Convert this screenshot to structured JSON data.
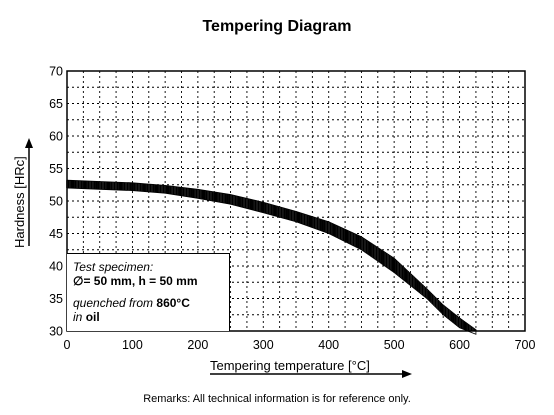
{
  "title": "Tempering Diagram",
  "remarks": "Remarks: All technical information is for reference only.",
  "specimen": {
    "heading": "Test specimen:",
    "diameter_symbol": "∅",
    "dimensions": "= 50 mm, h = 50 mm",
    "quench_prefix": "quenched from ",
    "quench_temp": "860°C",
    "medium_prefix": "in ",
    "medium": "oil"
  },
  "chart_data": {
    "type": "area",
    "title": "Tempering Diagram",
    "xlabel": "Tempering temperature [°C]",
    "ylabel": "Hardness [HRc]",
    "xlim": [
      0,
      700
    ],
    "ylim": [
      30,
      70
    ],
    "x_ticks": [
      0,
      100,
      200,
      300,
      400,
      500,
      600,
      700
    ],
    "y_ticks": [
      30,
      35,
      40,
      45,
      50,
      55,
      60,
      65,
      70
    ],
    "grid": "dotted",
    "x": [
      0,
      50,
      100,
      150,
      200,
      250,
      300,
      350,
      400,
      450,
      500,
      550,
      575,
      600,
      625
    ],
    "series": [
      {
        "values_upper": [
          53.2,
          53.0,
          52.8,
          52.4,
          51.8,
          51.0,
          49.8,
          48.4,
          46.8,
          44.5,
          41.2,
          36.5,
          34.0,
          32.0,
          30.2
        ],
        "values_lower": [
          52.0,
          51.8,
          51.6,
          51.2,
          50.4,
          49.5,
          48.2,
          46.8,
          45.0,
          42.5,
          39.0,
          35.0,
          32.5,
          30.5,
          29.5
        ]
      }
    ],
    "legend": "bottom-left"
  }
}
